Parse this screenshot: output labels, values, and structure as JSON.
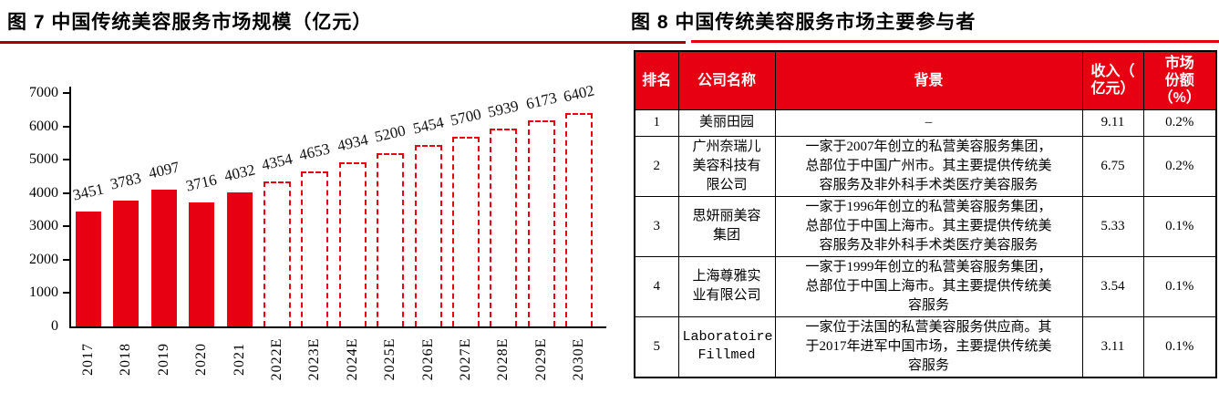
{
  "fig7": {
    "title": "图 7 中国传统美容服务市场规模（亿元）"
  },
  "fig8": {
    "title": "图 8 中国传统美容服务市场主要参与者",
    "table": {
      "headers": {
        "rank": "排名",
        "company": "公司名称",
        "background": "背景",
        "revenue": "收入（\n亿元）",
        "share": "市场\n份额\n（%）"
      },
      "rows": [
        {
          "rank": "1",
          "company": "美丽田园",
          "background": "–",
          "revenue": "9.11",
          "share": "0.2%"
        },
        {
          "rank": "2",
          "company": "广州奈瑞儿\n美容科技有\n限公司",
          "background": "一家于2007年创立的私营美容服务集团，\n总部位于中国广州市。其主要提供传统美\n容服务及非外科手术类医疗美容服务",
          "revenue": "6.75",
          "share": "0.2%"
        },
        {
          "rank": "3",
          "company": "思妍丽美容\n集团",
          "background": "一家于1996年创立的私营美容服务集团，\n总部位于中国上海市。其主要提供传统美\n容服务及非外科手术类医疗美容服务",
          "revenue": "5.33",
          "share": "0.1%"
        },
        {
          "rank": "4",
          "company": "上海尊雅实\n业有限公司",
          "background": "一家于1999年创立的私营美容服务集团，\n总部位于中国上海市。其主要提供传统美\n容服务",
          "revenue": "3.54",
          "share": "0.1%"
        },
        {
          "rank": "5",
          "company": "Laboratoire\nFillmed",
          "background": "一家位于法国的私营美容服务供应商。其\n于2017年进军中国市场，主要提供传统美\n容服务",
          "revenue": "3.11",
          "share": "0.1%"
        }
      ]
    }
  },
  "chart_data": {
    "type": "bar",
    "title": "图 7 中国传统美容服务市场规模（亿元）",
    "categories": [
      "2017",
      "2018",
      "2019",
      "2020",
      "2021",
      "2022E",
      "2023E",
      "2024E",
      "2025E",
      "2026E",
      "2027E",
      "2028E",
      "2029E",
      "2030E"
    ],
    "values": [
      3451,
      3783,
      4097,
      3716,
      4032,
      4354,
      4653,
      4934,
      5200,
      5454,
      5700,
      5939,
      6173,
      6402
    ],
    "data_labels_shown": true,
    "actual_count": 5,
    "actual_style": "solid",
    "estimate_style": "dashed-outline",
    "bar_color": "#e60012",
    "ylim": [
      0,
      7000
    ],
    "ytick_step": 1000,
    "xlabel": "",
    "ylabel": "",
    "grid": false,
    "legend": false
  },
  "colors": {
    "bar_red": "#e60012",
    "table_header_red": "#e60012",
    "fig7_rule": "#a80000",
    "fig8_rule": "#e60012",
    "axis_black": "#000000"
  }
}
